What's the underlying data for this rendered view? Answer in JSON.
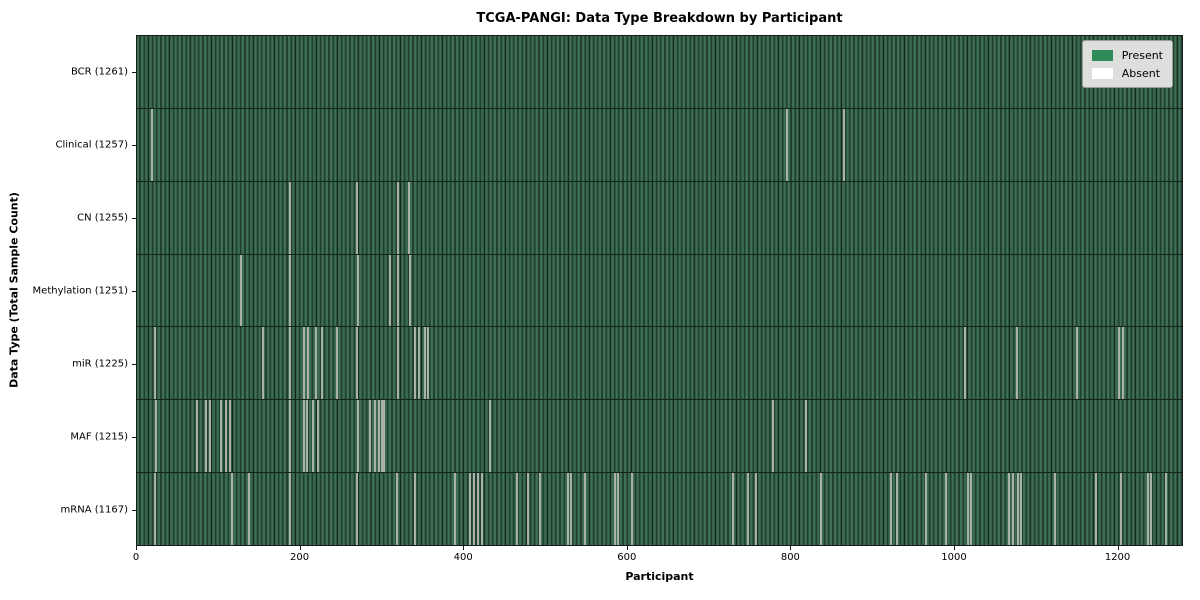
{
  "chart_data": {
    "type": "heatmap",
    "title": "TCGA-PANGI: Data Type Breakdown by Participant",
    "xlabel": "Participant",
    "ylabel": "Data Type (Total Sample Count)",
    "x_ticks": [
      0,
      200,
      400,
      600,
      800,
      1000,
      1200
    ],
    "x_range": [
      0,
      1280
    ],
    "grid": false,
    "legend_position": "upper right",
    "legend": [
      {
        "label": "Present",
        "color": "#2e8b57"
      },
      {
        "label": "Absent",
        "color": "#ffffff"
      }
    ],
    "colors": {
      "present_fill": "#2c563f",
      "present_fill_light": "#3e6e53",
      "present_fill_dark": "#16291d",
      "absent_line": "#a9b1a9",
      "legend_bg": "#dcdfdb"
    },
    "rows": [
      {
        "label": "BCR",
        "total": 1261,
        "absent": []
      },
      {
        "label": "Clinical",
        "total": 1257,
        "absent": [
          18,
          796,
          866
        ]
      },
      {
        "label": "CN",
        "total": 1255,
        "absent": [
          187,
          270,
          320,
          333
        ]
      },
      {
        "label": "Methylation",
        "total": 1251,
        "absent": [
          127,
          187,
          271,
          310,
          320,
          334
        ]
      },
      {
        "label": "miR",
        "total": 1225,
        "absent": [
          22,
          154,
          187,
          204,
          210,
          219,
          227,
          245,
          270,
          320,
          341,
          345,
          353,
          357,
          1014,
          1078,
          1151,
          1203,
          1208
        ]
      },
      {
        "label": "MAF",
        "total": 1215,
        "absent": [
          23,
          74,
          84,
          90,
          103,
          109,
          114,
          188,
          204,
          208,
          216,
          222,
          271,
          286,
          291,
          296,
          300,
          303,
          432,
          779,
          819
        ]
      },
      {
        "label": "mRNA",
        "total": 1167,
        "absent": [
          22,
          116,
          137,
          188,
          270,
          318,
          341,
          390,
          408,
          413,
          418,
          423,
          465,
          479,
          494,
          528,
          532,
          549,
          585,
          589,
          606,
          730,
          748,
          758,
          838,
          923,
          931,
          967,
          991,
          1018,
          1022,
          1068,
          1073,
          1079,
          1083,
          1124,
          1175,
          1205,
          1238,
          1242,
          1260
        ]
      }
    ]
  }
}
